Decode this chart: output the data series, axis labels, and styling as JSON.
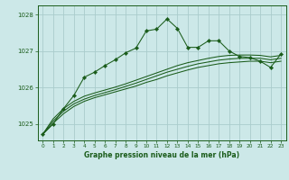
{
  "background_color": "#cce8e8",
  "grid_color": "#aacccc",
  "line_color": "#1a5c1a",
  "xlabel": "Graphe pression niveau de la mer (hPa)",
  "xlabel_color": "#1a5c1a",
  "ylim": [
    1024.55,
    1028.25
  ],
  "xlim": [
    -0.5,
    23.5
  ],
  "yticks": [
    1025,
    1026,
    1027,
    1028
  ],
  "xticks": [
    0,
    1,
    2,
    3,
    4,
    5,
    6,
    7,
    8,
    9,
    10,
    11,
    12,
    13,
    14,
    15,
    16,
    17,
    18,
    19,
    20,
    21,
    22,
    23
  ],
  "smooth_lines": [
    [
      1024.72,
      1025.02,
      1025.28,
      1025.48,
      1025.62,
      1025.72,
      1025.8,
      1025.88,
      1025.96,
      1026.04,
      1026.14,
      1026.22,
      1026.32,
      1026.4,
      1026.48,
      1026.55,
      1026.6,
      1026.65,
      1026.68,
      1026.7,
      1026.72,
      1026.72,
      1026.68,
      1026.72
    ],
    [
      1024.72,
      1025.08,
      1025.35,
      1025.55,
      1025.68,
      1025.78,
      1025.86,
      1025.94,
      1026.03,
      1026.12,
      1026.22,
      1026.32,
      1026.42,
      1026.5,
      1026.58,
      1026.65,
      1026.7,
      1026.75,
      1026.78,
      1026.8,
      1026.8,
      1026.8,
      1026.76,
      1026.8
    ],
    [
      1024.72,
      1025.14,
      1025.42,
      1025.62,
      1025.76,
      1025.85,
      1025.93,
      1026.01,
      1026.1,
      1026.2,
      1026.3,
      1026.4,
      1026.5,
      1026.6,
      1026.68,
      1026.74,
      1026.8,
      1026.85,
      1026.88,
      1026.89,
      1026.89,
      1026.88,
      1026.84,
      1026.88
    ]
  ],
  "main_y": [
    1024.72,
    1025.0,
    1025.42,
    1025.78,
    1026.28,
    1026.42,
    1026.6,
    1026.76,
    1026.95,
    1027.08,
    1027.55,
    1027.6,
    1027.88,
    1027.62,
    1027.1,
    1027.1,
    1027.28,
    1027.28,
    1027.0,
    1026.85,
    1026.82,
    1026.72,
    1026.55,
    1026.92
  ]
}
